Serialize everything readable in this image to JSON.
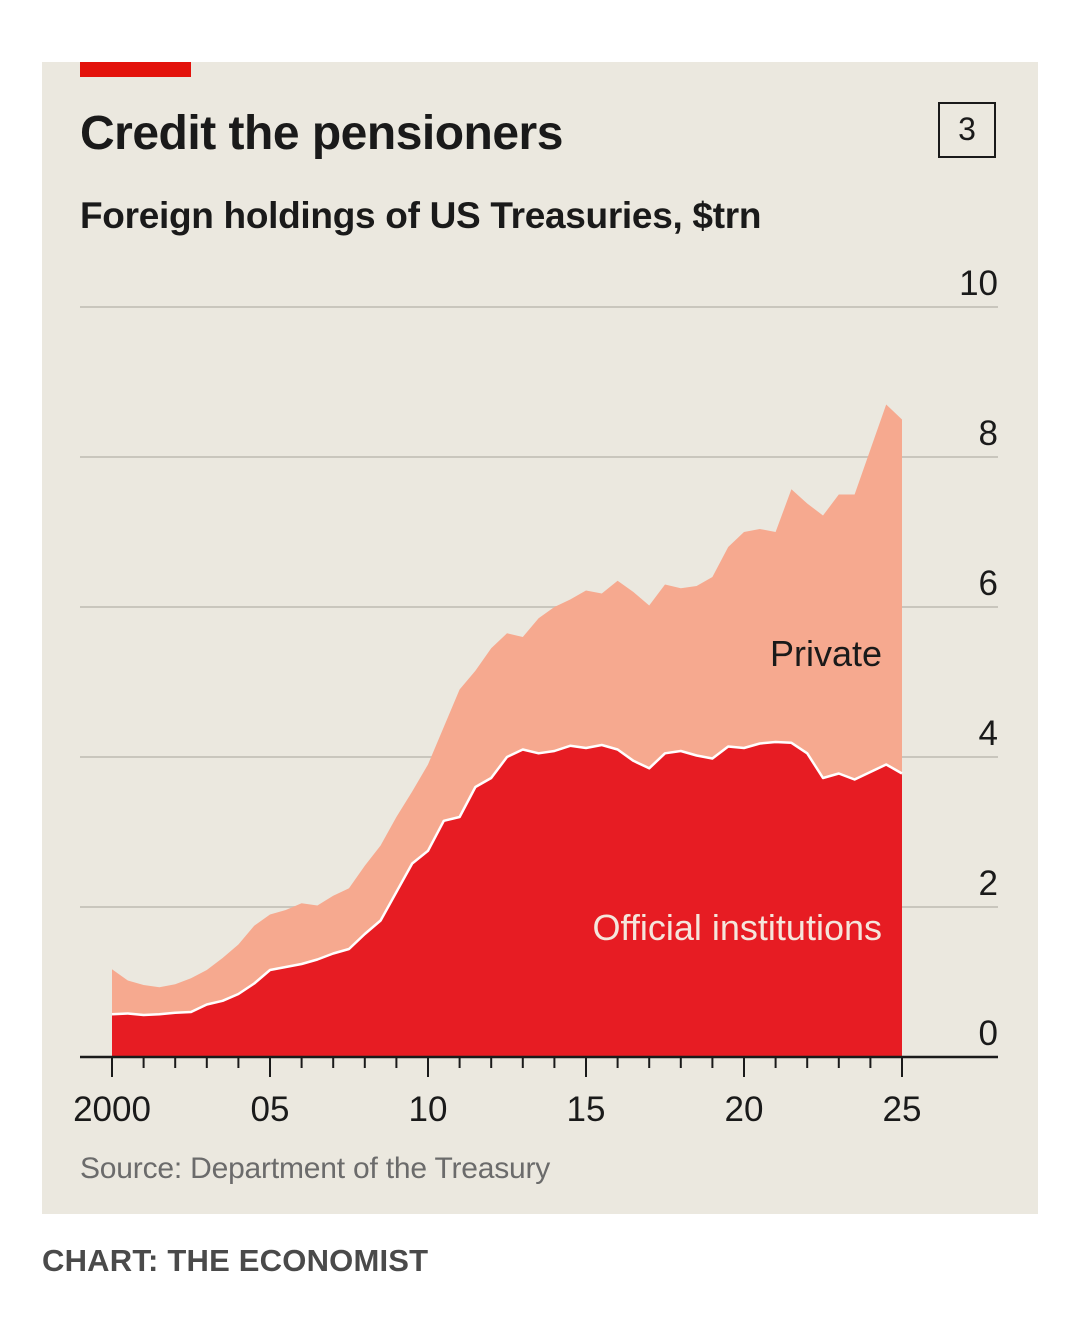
{
  "header": {
    "title": "Credit the pensioners",
    "chart_number": "3",
    "subtitle": "Foreign holdings of US Treasuries, $trn"
  },
  "footer": {
    "source": "Source: Department of the Treasury",
    "credit": "CHART: THE ECONOMIST"
  },
  "colors": {
    "background": "#ebe8df",
    "accent_red": "#e3120b",
    "official": "#e71c23",
    "private": "#f6a98f",
    "gridline": "#c9c6bd"
  },
  "chart_data": {
    "type": "area",
    "stacked": true,
    "title": "Credit the pensioners",
    "subtitle": "Foreign holdings of US Treasuries, $trn",
    "y_axis_position": "right",
    "ylim": [
      0,
      10
    ],
    "yticks": [
      0,
      2,
      4,
      6,
      8,
      10
    ],
    "ytick_labels": [
      "0",
      "2",
      "4",
      "6",
      "8",
      "10"
    ],
    "xlim": [
      2000,
      2025
    ],
    "xticks": [
      2000,
      2005,
      2010,
      2015,
      2020,
      2025
    ],
    "xtick_labels": [
      "2000",
      "05",
      "10",
      "15",
      "20",
      "25"
    ],
    "grid": true,
    "series": [
      {
        "name": "Official institutions",
        "color": "#e71c23",
        "label_color": "#f5e6dc",
        "values": [
          [
            2000.0,
            0.57
          ],
          [
            2000.5,
            0.58
          ],
          [
            2001.0,
            0.56
          ],
          [
            2001.5,
            0.57
          ],
          [
            2002.0,
            0.59
          ],
          [
            2002.5,
            0.6
          ],
          [
            2003.0,
            0.7
          ],
          [
            2003.5,
            0.75
          ],
          [
            2004.0,
            0.84
          ],
          [
            2004.5,
            0.98
          ],
          [
            2005.0,
            1.16
          ],
          [
            2005.5,
            1.2
          ],
          [
            2006.0,
            1.24
          ],
          [
            2006.5,
            1.3
          ],
          [
            2007.0,
            1.38
          ],
          [
            2007.5,
            1.44
          ],
          [
            2008.0,
            1.64
          ],
          [
            2008.5,
            1.82
          ],
          [
            2009.0,
            2.2
          ],
          [
            2009.5,
            2.58
          ],
          [
            2010.0,
            2.75
          ],
          [
            2010.5,
            3.15
          ],
          [
            2011.0,
            3.2
          ],
          [
            2011.5,
            3.6
          ],
          [
            2012.0,
            3.72
          ],
          [
            2012.5,
            4.0
          ],
          [
            2013.0,
            4.1
          ],
          [
            2013.5,
            4.05
          ],
          [
            2014.0,
            4.08
          ],
          [
            2014.5,
            4.15
          ],
          [
            2015.0,
            4.12
          ],
          [
            2015.5,
            4.16
          ],
          [
            2016.0,
            4.1
          ],
          [
            2016.5,
            3.95
          ],
          [
            2017.0,
            3.85
          ],
          [
            2017.5,
            4.05
          ],
          [
            2018.0,
            4.08
          ],
          [
            2018.5,
            4.02
          ],
          [
            2019.0,
            3.98
          ],
          [
            2019.5,
            4.14
          ],
          [
            2020.0,
            4.12
          ],
          [
            2020.5,
            4.18
          ],
          [
            2021.0,
            4.2
          ],
          [
            2021.5,
            4.19
          ],
          [
            2022.0,
            4.05
          ],
          [
            2022.5,
            3.72
          ],
          [
            2023.0,
            3.78
          ],
          [
            2023.5,
            3.7
          ],
          [
            2024.0,
            3.8
          ],
          [
            2024.5,
            3.9
          ],
          [
            2025.0,
            3.78
          ]
        ]
      },
      {
        "name": "Private",
        "color": "#f6a98f",
        "label_color": "#1a1a1a",
        "values": [
          [
            2000.0,
            0.6
          ],
          [
            2000.5,
            0.44
          ],
          [
            2001.0,
            0.4
          ],
          [
            2001.5,
            0.36
          ],
          [
            2002.0,
            0.38
          ],
          [
            2002.5,
            0.45
          ],
          [
            2003.0,
            0.46
          ],
          [
            2003.5,
            0.57
          ],
          [
            2004.0,
            0.66
          ],
          [
            2004.5,
            0.77
          ],
          [
            2005.0,
            0.74
          ],
          [
            2005.5,
            0.76
          ],
          [
            2006.0,
            0.81
          ],
          [
            2006.5,
            0.72
          ],
          [
            2007.0,
            0.77
          ],
          [
            2007.5,
            0.81
          ],
          [
            2008.0,
            0.91
          ],
          [
            2008.5,
            1.0
          ],
          [
            2009.0,
            1.0
          ],
          [
            2009.5,
            0.96
          ],
          [
            2010.0,
            1.15
          ],
          [
            2010.5,
            1.25
          ],
          [
            2011.0,
            1.7
          ],
          [
            2011.5,
            1.55
          ],
          [
            2012.0,
            1.73
          ],
          [
            2012.5,
            1.65
          ],
          [
            2013.0,
            1.5
          ],
          [
            2013.5,
            1.8
          ],
          [
            2014.0,
            1.92
          ],
          [
            2014.5,
            1.95
          ],
          [
            2015.0,
            2.1
          ],
          [
            2015.5,
            2.02
          ],
          [
            2016.0,
            2.25
          ],
          [
            2016.5,
            2.25
          ],
          [
            2017.0,
            2.17
          ],
          [
            2017.5,
            2.25
          ],
          [
            2018.0,
            2.17
          ],
          [
            2018.5,
            2.26
          ],
          [
            2019.0,
            2.42
          ],
          [
            2019.5,
            2.66
          ],
          [
            2020.0,
            2.88
          ],
          [
            2020.5,
            2.86
          ],
          [
            2021.0,
            2.8
          ],
          [
            2021.5,
            3.38
          ],
          [
            2022.0,
            3.33
          ],
          [
            2022.5,
            3.5
          ],
          [
            2023.0,
            3.72
          ],
          [
            2023.5,
            3.8
          ],
          [
            2024.0,
            4.3
          ],
          [
            2024.5,
            4.8
          ],
          [
            2025.0,
            4.72
          ]
        ]
      }
    ],
    "annotations": [
      {
        "text": "Private",
        "series": "Private"
      },
      {
        "text": "Official institutions",
        "series": "Official institutions"
      }
    ]
  }
}
